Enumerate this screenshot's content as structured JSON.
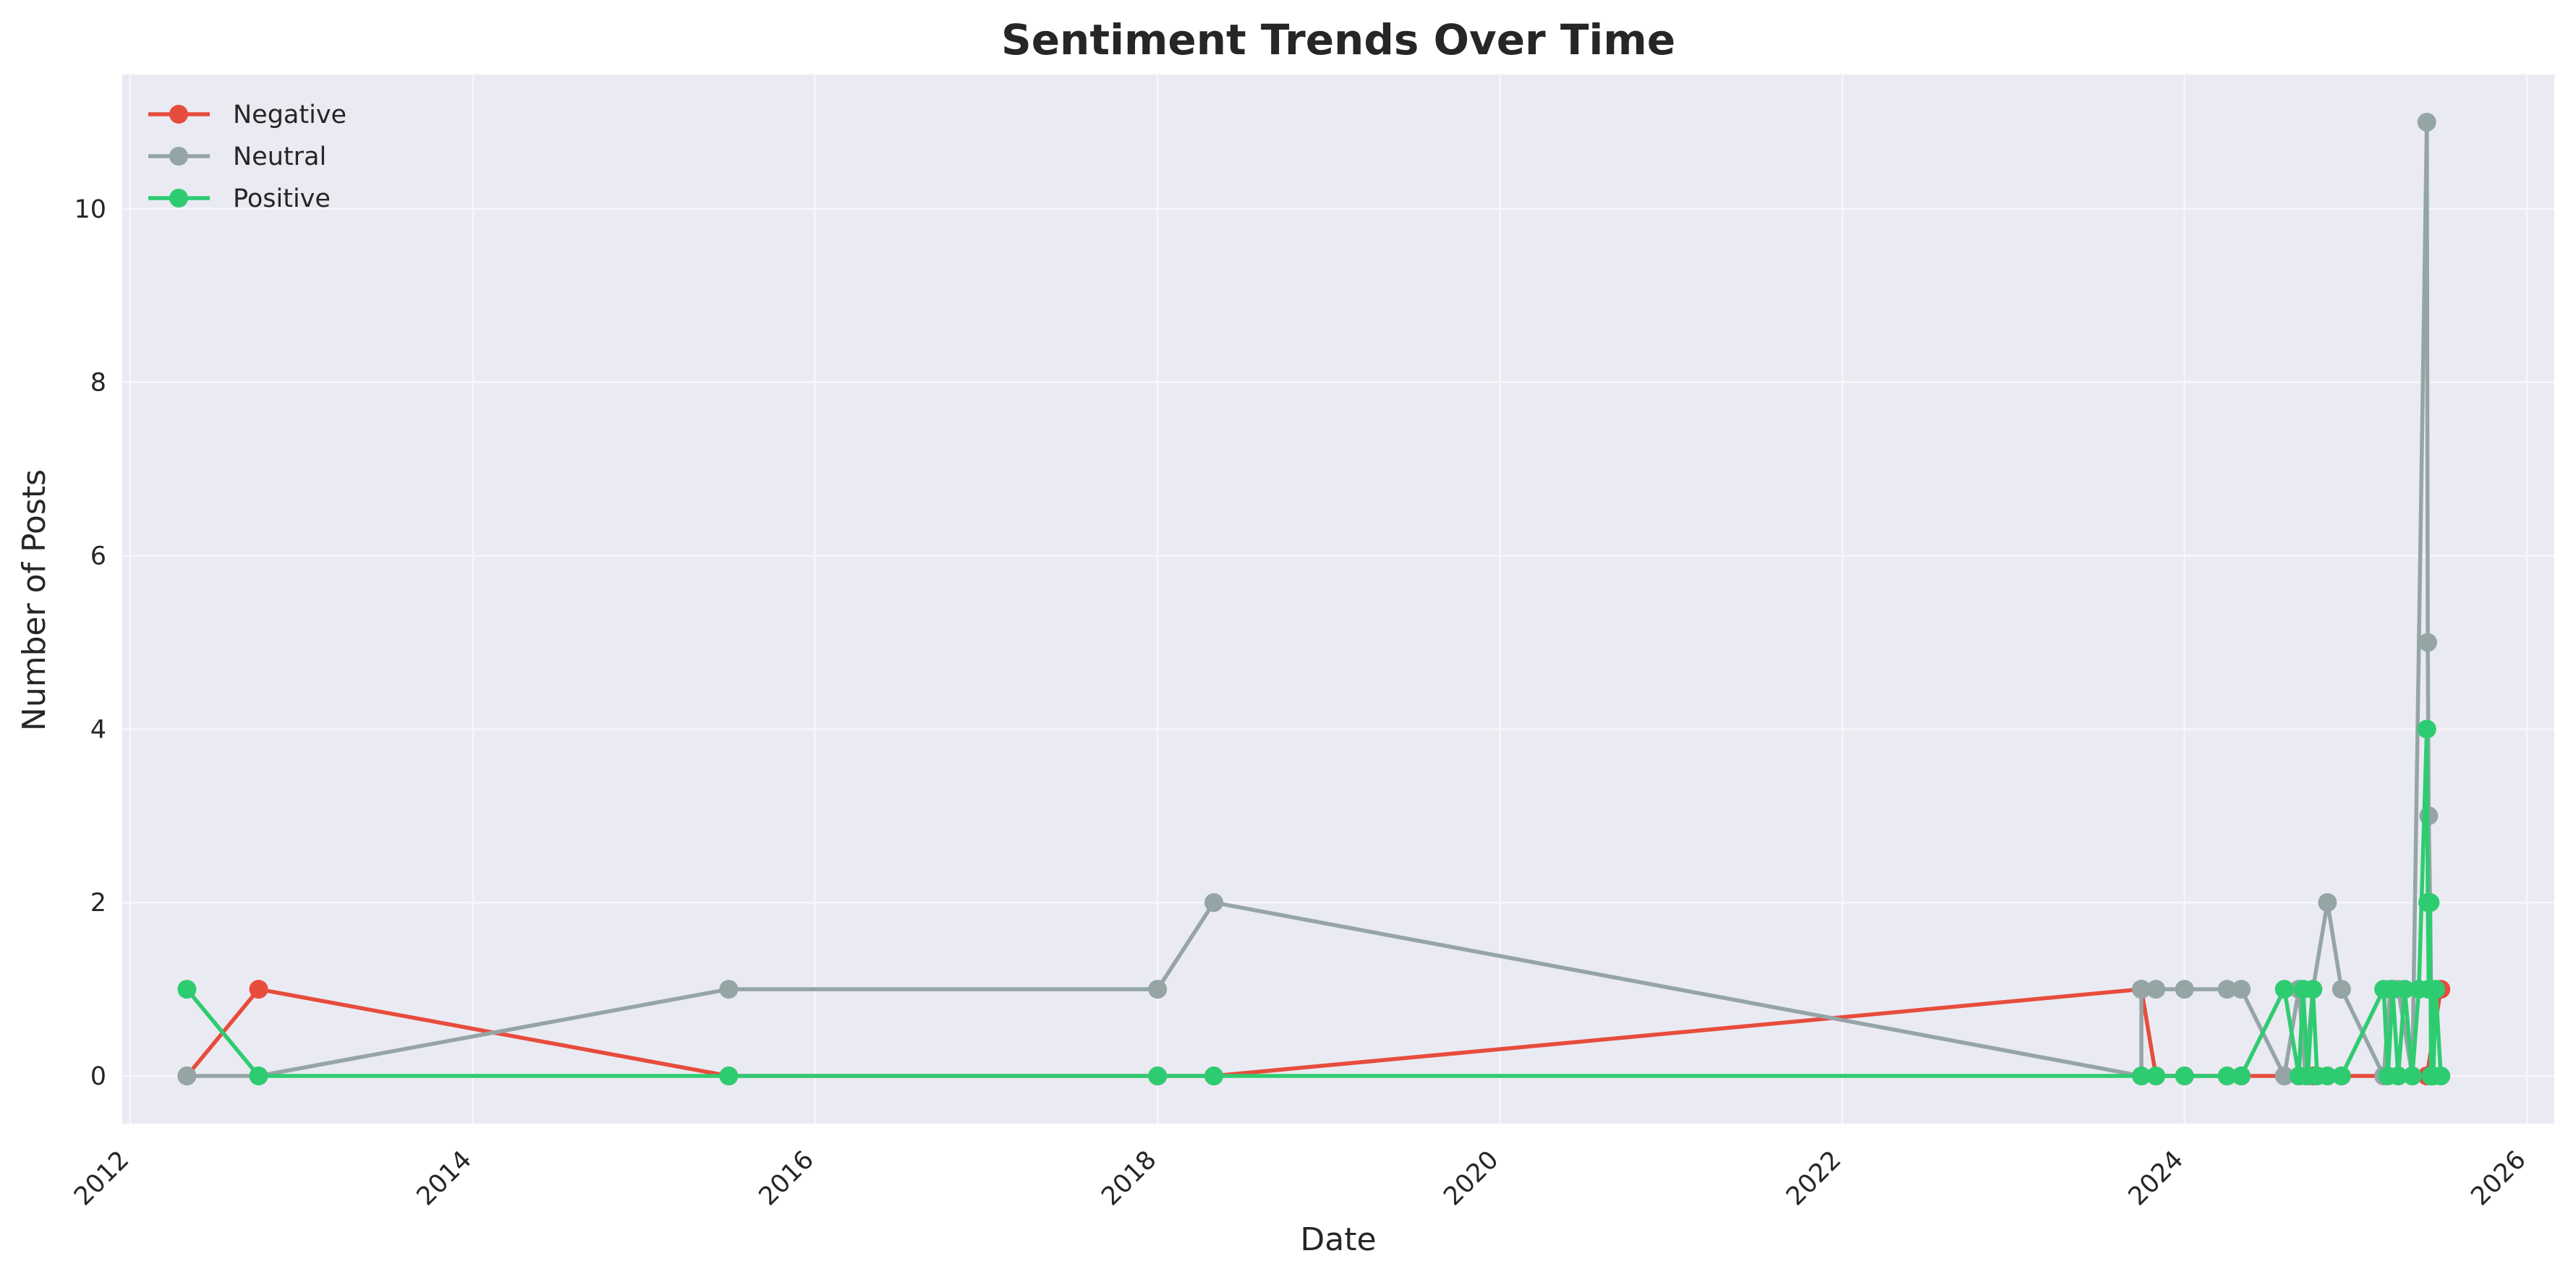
{
  "chart_data": {
    "type": "line",
    "title": "Sentiment Trends Over Time",
    "xlabel": "Date",
    "ylabel": "Number of Posts",
    "xlim": [
      "2011-12-15",
      "2026-02-28"
    ],
    "ylim": [
      -0.55,
      11.55
    ],
    "x_ticks": [
      "2012",
      "2014",
      "2016",
      "2018",
      "2020",
      "2022",
      "2024",
      "2026"
    ],
    "y_ticks": [
      0,
      2,
      4,
      6,
      8,
      10
    ],
    "grid": true,
    "legend_position": "upper-left",
    "series": [
      {
        "name": "Negative",
        "color": "#e74c3c",
        "points": [
          [
            "2012-05-01",
            0
          ],
          [
            "2012-10-01",
            1
          ],
          [
            "2015-07-01",
            0
          ],
          [
            "2018-01-01",
            0
          ],
          [
            "2018-05-01",
            0
          ],
          [
            "2023-10-01",
            1
          ],
          [
            "2023-11-01",
            0
          ],
          [
            "2024-01-01",
            0
          ],
          [
            "2024-04-01",
            0
          ],
          [
            "2024-05-01",
            0
          ],
          [
            "2024-08-01",
            0
          ],
          [
            "2024-09-01",
            0
          ],
          [
            "2024-10-01",
            0
          ],
          [
            "2024-11-01",
            0
          ],
          [
            "2024-12-01",
            0
          ],
          [
            "2025-03-01",
            0
          ],
          [
            "2025-04-01",
            0
          ],
          [
            "2025-05-01",
            0
          ],
          [
            "2025-06-01",
            0
          ],
          [
            "2025-07-01",
            1
          ]
        ]
      },
      {
        "name": "Neutral",
        "color": "#95a5a6",
        "points": [
          [
            "2012-05-01",
            0
          ],
          [
            "2012-10-01",
            0
          ],
          [
            "2015-07-01",
            1
          ],
          [
            "2018-01-01",
            1
          ],
          [
            "2018-05-01",
            2
          ],
          [
            "2023-10-01",
            0
          ],
          [
            "2023-10-01",
            1
          ],
          [
            "2023-11-01",
            1
          ],
          [
            "2024-01-01",
            1
          ],
          [
            "2024-04-01",
            1
          ],
          [
            "2024-05-01",
            1
          ],
          [
            "2024-08-01",
            0
          ],
          [
            "2024-09-01",
            1
          ],
          [
            "2024-09-15",
            0
          ],
          [
            "2024-10-01",
            1
          ],
          [
            "2024-11-01",
            2
          ],
          [
            "2024-12-01",
            1
          ],
          [
            "2025-03-01",
            0
          ],
          [
            "2025-03-15",
            1
          ],
          [
            "2025-04-01",
            1
          ],
          [
            "2025-05-01",
            0
          ],
          [
            "2025-06-01",
            11
          ],
          [
            "2025-06-03",
            5
          ],
          [
            "2025-06-05",
            3
          ],
          [
            "2025-06-08",
            2
          ],
          [
            "2025-06-10",
            1
          ],
          [
            "2025-06-12",
            0
          ],
          [
            "2025-07-01",
            0
          ]
        ]
      },
      {
        "name": "Positive",
        "color": "#2ecc71",
        "points": [
          [
            "2012-05-01",
            1
          ],
          [
            "2012-10-01",
            0
          ],
          [
            "2015-07-01",
            0
          ],
          [
            "2018-01-01",
            0
          ],
          [
            "2018-05-01",
            0
          ],
          [
            "2023-10-01",
            0
          ],
          [
            "2023-11-01",
            0
          ],
          [
            "2024-01-01",
            0
          ],
          [
            "2024-04-01",
            0
          ],
          [
            "2024-05-01",
            0
          ],
          [
            "2024-08-01",
            1
          ],
          [
            "2024-09-01",
            0
          ],
          [
            "2024-09-10",
            1
          ],
          [
            "2024-09-20",
            0
          ],
          [
            "2024-10-01",
            1
          ],
          [
            "2024-10-10",
            0
          ],
          [
            "2024-11-01",
            0
          ],
          [
            "2024-12-01",
            0
          ],
          [
            "2025-03-01",
            1
          ],
          [
            "2025-03-10",
            0
          ],
          [
            "2025-03-20",
            1
          ],
          [
            "2025-04-01",
            0
          ],
          [
            "2025-04-15",
            1
          ],
          [
            "2025-05-01",
            0
          ],
          [
            "2025-05-15",
            1
          ],
          [
            "2025-06-01",
            4
          ],
          [
            "2025-06-03",
            2
          ],
          [
            "2025-06-05",
            1
          ],
          [
            "2025-06-08",
            2
          ],
          [
            "2025-06-10",
            0
          ],
          [
            "2025-06-12",
            1
          ],
          [
            "2025-06-15",
            0
          ],
          [
            "2025-06-20",
            1
          ],
          [
            "2025-07-01",
            0
          ]
        ]
      }
    ]
  }
}
